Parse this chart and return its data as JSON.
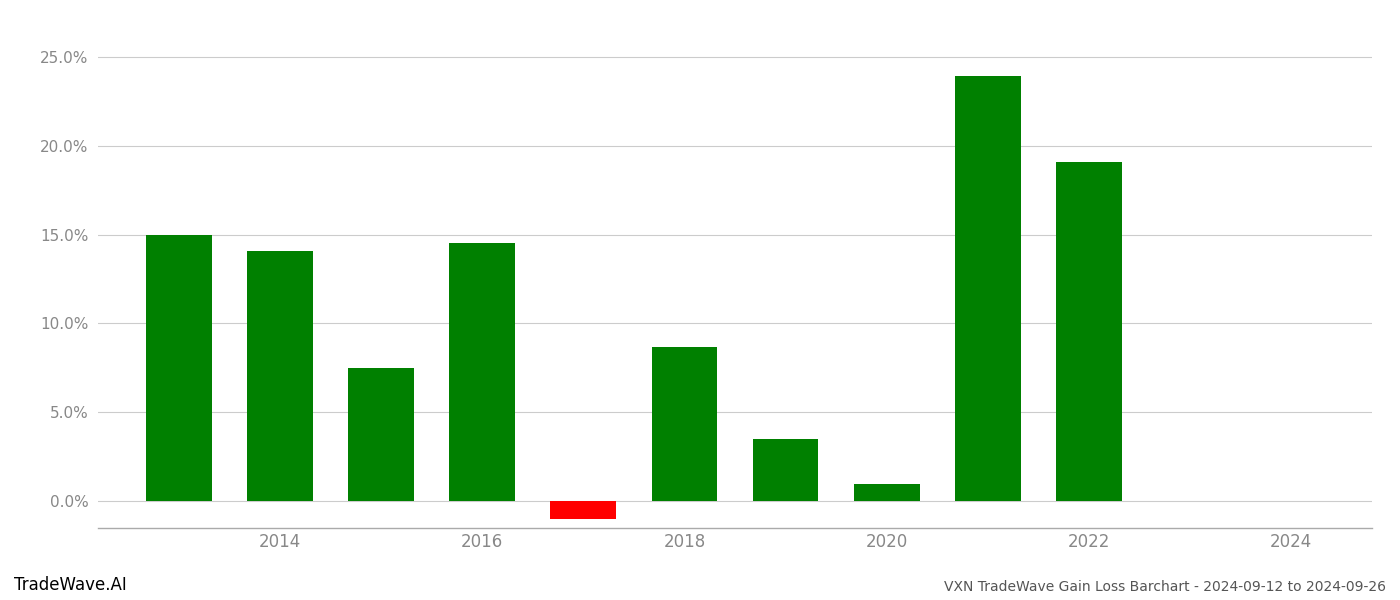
{
  "years": [
    2013,
    2014,
    2015,
    2016,
    2017,
    2018,
    2019,
    2020,
    2021,
    2022,
    2023
  ],
  "values": [
    0.15,
    0.141,
    0.075,
    0.145,
    -0.01,
    0.087,
    0.035,
    0.01,
    0.239,
    0.191,
    0.0
  ],
  "colors": [
    "#008000",
    "#008000",
    "#008000",
    "#008000",
    "#ff0000",
    "#008000",
    "#008000",
    "#008000",
    "#008000",
    "#008000",
    "#008000"
  ],
  "title": "VXN TradeWave Gain Loss Barchart - 2024-09-12 to 2024-09-26",
  "watermark": "TradeWave.AI",
  "ylim": [
    -0.015,
    0.265
  ],
  "yticks": [
    0.0,
    0.05,
    0.1,
    0.15,
    0.2,
    0.25
  ],
  "xticks": [
    2014,
    2016,
    2018,
    2020,
    2022,
    2024
  ],
  "xlim": [
    2012.2,
    2024.8
  ],
  "background_color": "#ffffff",
  "grid_color": "#cccccc",
  "bar_width": 0.65
}
